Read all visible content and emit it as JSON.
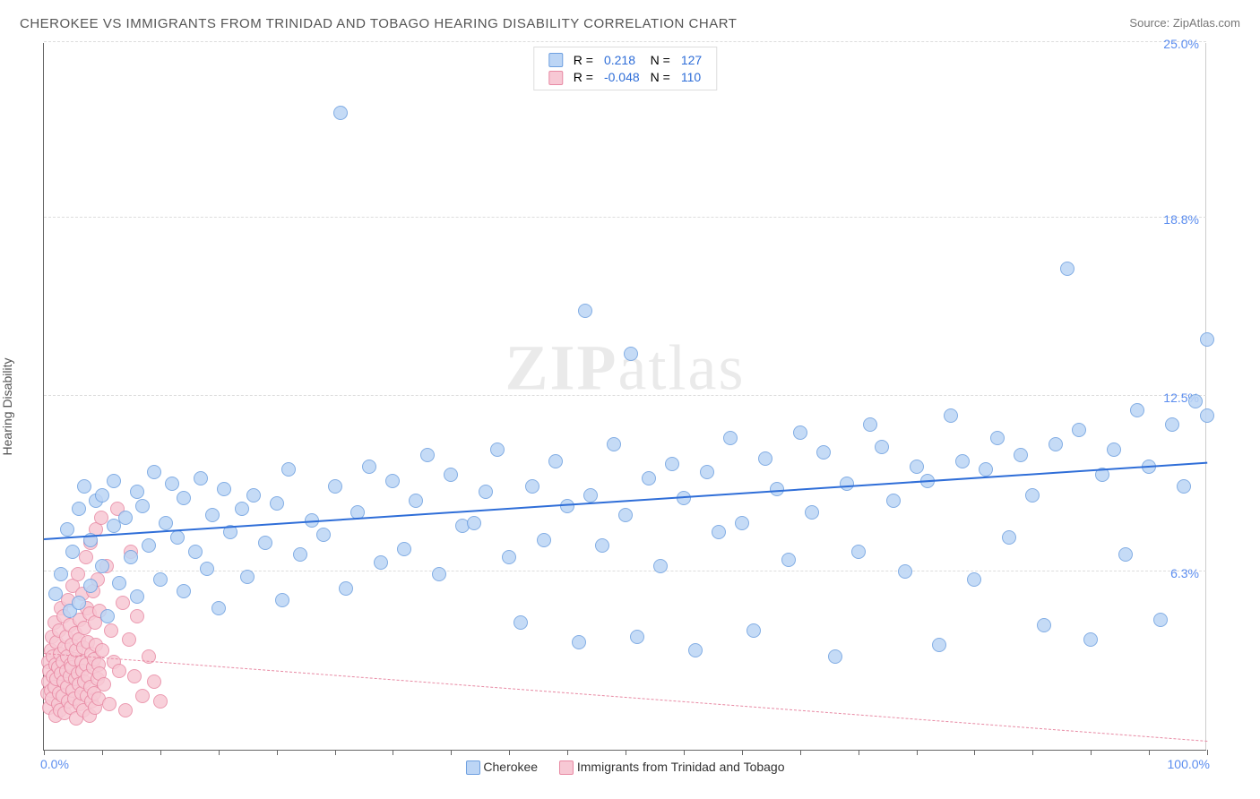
{
  "title": "CHEROKEE VS IMMIGRANTS FROM TRINIDAD AND TOBAGO HEARING DISABILITY CORRELATION CHART",
  "source_label": "Source:",
  "source_site": "ZipAtlas.com",
  "ylabel": "Hearing Disability",
  "watermark_a": "ZIP",
  "watermark_b": "atlas",
  "chart": {
    "type": "scatter",
    "xlim": [
      0,
      100
    ],
    "ylim": [
      0,
      25
    ],
    "x_ticks_minor_step": 5,
    "y_gridlines": [
      6.3,
      12.5,
      18.8,
      25.0
    ],
    "y_tick_labels": [
      "6.3%",
      "12.5%",
      "18.8%",
      "25.0%"
    ],
    "x_tick_labels": {
      "left": "0.0%",
      "right": "100.0%"
    },
    "background_color": "#ffffff",
    "grid_color": "#dddddd",
    "tick_label_color": "#5b8def",
    "marker_radius": 8,
    "marker_stroke_width": 1,
    "series": [
      {
        "name": "Cherokee",
        "fill_color": "#bcd5f5",
        "stroke_color": "#6ea0e0",
        "trend": {
          "y_at_x0": 7.4,
          "y_at_x100": 10.1,
          "color": "#2f6ed8",
          "width": 2,
          "dash": "solid"
        },
        "R": "0.218",
        "N": "127",
        "points": [
          [
            1,
            5.5
          ],
          [
            1.5,
            6.2
          ],
          [
            2,
            7.8
          ],
          [
            2.2,
            4.9
          ],
          [
            2.5,
            7.0
          ],
          [
            3,
            8.5
          ],
          [
            3,
            5.2
          ],
          [
            3.5,
            9.3
          ],
          [
            4,
            5.8
          ],
          [
            4,
            7.4
          ],
          [
            4.5,
            8.8
          ],
          [
            5,
            6.5
          ],
          [
            5,
            9.0
          ],
          [
            5.5,
            4.7
          ],
          [
            6,
            7.9
          ],
          [
            6,
            9.5
          ],
          [
            6.5,
            5.9
          ],
          [
            7,
            8.2
          ],
          [
            7.5,
            6.8
          ],
          [
            8,
            9.1
          ],
          [
            8,
            5.4
          ],
          [
            8.5,
            8.6
          ],
          [
            9,
            7.2
          ],
          [
            9.5,
            9.8
          ],
          [
            10,
            6.0
          ],
          [
            10.5,
            8.0
          ],
          [
            11,
            9.4
          ],
          [
            11.5,
            7.5
          ],
          [
            12,
            5.6
          ],
          [
            12,
            8.9
          ],
          [
            13,
            7.0
          ],
          [
            13.5,
            9.6
          ],
          [
            14,
            6.4
          ],
          [
            14.5,
            8.3
          ],
          [
            15,
            5.0
          ],
          [
            15.5,
            9.2
          ],
          [
            16,
            7.7
          ],
          [
            17,
            8.5
          ],
          [
            17.5,
            6.1
          ],
          [
            18,
            9.0
          ],
          [
            19,
            7.3
          ],
          [
            20,
            8.7
          ],
          [
            20.5,
            5.3
          ],
          [
            21,
            9.9
          ],
          [
            22,
            6.9
          ],
          [
            23,
            8.1
          ],
          [
            24,
            7.6
          ],
          [
            25,
            9.3
          ],
          [
            25.5,
            22.5
          ],
          [
            26,
            5.7
          ],
          [
            27,
            8.4
          ],
          [
            28,
            10.0
          ],
          [
            29,
            6.6
          ],
          [
            30,
            9.5
          ],
          [
            31,
            7.1
          ],
          [
            32,
            8.8
          ],
          [
            33,
            10.4
          ],
          [
            34,
            6.2
          ],
          [
            35,
            9.7
          ],
          [
            36,
            7.9
          ],
          [
            37,
            8.0
          ],
          [
            38,
            9.1
          ],
          [
            39,
            10.6
          ],
          [
            40,
            6.8
          ],
          [
            41,
            4.5
          ],
          [
            42,
            9.3
          ],
          [
            43,
            7.4
          ],
          [
            44,
            10.2
          ],
          [
            45,
            8.6
          ],
          [
            46,
            3.8
          ],
          [
            46.5,
            15.5
          ],
          [
            47,
            9.0
          ],
          [
            48,
            7.2
          ],
          [
            49,
            10.8
          ],
          [
            50,
            8.3
          ],
          [
            50.5,
            14.0
          ],
          [
            51,
            4.0
          ],
          [
            52,
            9.6
          ],
          [
            53,
            6.5
          ],
          [
            54,
            10.1
          ],
          [
            55,
            8.9
          ],
          [
            56,
            3.5
          ],
          [
            57,
            9.8
          ],
          [
            58,
            7.7
          ],
          [
            59,
            11.0
          ],
          [
            60,
            8.0
          ],
          [
            61,
            4.2
          ],
          [
            62,
            10.3
          ],
          [
            63,
            9.2
          ],
          [
            64,
            6.7
          ],
          [
            65,
            11.2
          ],
          [
            66,
            8.4
          ],
          [
            67,
            10.5
          ],
          [
            68,
            3.3
          ],
          [
            69,
            9.4
          ],
          [
            70,
            7.0
          ],
          [
            71,
            11.5
          ],
          [
            72,
            10.7
          ],
          [
            73,
            8.8
          ],
          [
            74,
            6.3
          ],
          [
            75,
            10.0
          ],
          [
            76,
            9.5
          ],
          [
            77,
            3.7
          ],
          [
            78,
            11.8
          ],
          [
            79,
            10.2
          ],
          [
            80,
            6.0
          ],
          [
            81,
            9.9
          ],
          [
            82,
            11.0
          ],
          [
            83,
            7.5
          ],
          [
            84,
            10.4
          ],
          [
            85,
            9.0
          ],
          [
            86,
            4.4
          ],
          [
            87,
            10.8
          ],
          [
            88,
            17.0
          ],
          [
            89,
            11.3
          ],
          [
            90,
            3.9
          ],
          [
            91,
            9.7
          ],
          [
            92,
            10.6
          ],
          [
            93,
            6.9
          ],
          [
            94,
            12.0
          ],
          [
            95,
            10.0
          ],
          [
            96,
            4.6
          ],
          [
            97,
            11.5
          ],
          [
            98,
            9.3
          ],
          [
            99,
            12.3
          ],
          [
            100,
            14.5
          ],
          [
            100,
            11.8
          ]
        ]
      },
      {
        "name": "Immigrants from Trinidad and Tobago",
        "fill_color": "#f7c8d4",
        "stroke_color": "#e88aa4",
        "trend": {
          "y_at_x0": 3.4,
          "y_at_x100": 0.3,
          "color": "#e88aa4",
          "width": 1,
          "dash": "dashed"
        },
        "R": "-0.048",
        "N": "110",
        "points": [
          [
            0.3,
            2.0
          ],
          [
            0.4,
            2.4
          ],
          [
            0.4,
            3.1
          ],
          [
            0.5,
            1.5
          ],
          [
            0.5,
            2.8
          ],
          [
            0.6,
            3.5
          ],
          [
            0.6,
            2.1
          ],
          [
            0.7,
            4.0
          ],
          [
            0.7,
            1.8
          ],
          [
            0.8,
            2.6
          ],
          [
            0.8,
            3.3
          ],
          [
            0.9,
            2.2
          ],
          [
            0.9,
            4.5
          ],
          [
            1.0,
            1.2
          ],
          [
            1.0,
            3.0
          ],
          [
            1.1,
            2.5
          ],
          [
            1.1,
            3.8
          ],
          [
            1.2,
            1.6
          ],
          [
            1.2,
            2.9
          ],
          [
            1.3,
            4.2
          ],
          [
            1.3,
            2.0
          ],
          [
            1.4,
            3.4
          ],
          [
            1.4,
            1.4
          ],
          [
            1.5,
            2.7
          ],
          [
            1.5,
            5.0
          ],
          [
            1.6,
            3.1
          ],
          [
            1.6,
            1.9
          ],
          [
            1.7,
            2.4
          ],
          [
            1.7,
            4.7
          ],
          [
            1.8,
            3.6
          ],
          [
            1.8,
            1.3
          ],
          [
            1.9,
            2.8
          ],
          [
            1.9,
            4.0
          ],
          [
            2.0,
            2.2
          ],
          [
            2.0,
            3.3
          ],
          [
            2.1,
            1.7
          ],
          [
            2.1,
            5.3
          ],
          [
            2.2,
            2.6
          ],
          [
            2.2,
            4.4
          ],
          [
            2.3,
            3.0
          ],
          [
            2.3,
            1.5
          ],
          [
            2.4,
            2.9
          ],
          [
            2.4,
            3.7
          ],
          [
            2.5,
            2.1
          ],
          [
            2.5,
            5.8
          ],
          [
            2.6,
            3.2
          ],
          [
            2.6,
            1.8
          ],
          [
            2.7,
            4.1
          ],
          [
            2.7,
            2.5
          ],
          [
            2.8,
            3.5
          ],
          [
            2.8,
            1.1
          ],
          [
            2.9,
            2.7
          ],
          [
            2.9,
            6.2
          ],
          [
            3.0,
            3.9
          ],
          [
            3.0,
            2.3
          ],
          [
            3.1,
            1.6
          ],
          [
            3.1,
            4.6
          ],
          [
            3.2,
            3.1
          ],
          [
            3.2,
            2.0
          ],
          [
            3.3,
            5.5
          ],
          [
            3.3,
            2.8
          ],
          [
            3.4,
            1.4
          ],
          [
            3.4,
            3.6
          ],
          [
            3.5,
            4.3
          ],
          [
            3.5,
            2.4
          ],
          [
            3.6,
            6.8
          ],
          [
            3.6,
            3.0
          ],
          [
            3.7,
            1.9
          ],
          [
            3.7,
            5.0
          ],
          [
            3.8,
            2.6
          ],
          [
            3.8,
            3.8
          ],
          [
            3.9,
            1.2
          ],
          [
            3.9,
            4.8
          ],
          [
            4.0,
            2.2
          ],
          [
            4.0,
            7.3
          ],
          [
            4.1,
            3.4
          ],
          [
            4.1,
            1.7
          ],
          [
            4.2,
            2.9
          ],
          [
            4.2,
            5.6
          ],
          [
            4.3,
            3.2
          ],
          [
            4.3,
            2.0
          ],
          [
            4.4,
            4.5
          ],
          [
            4.4,
            1.5
          ],
          [
            4.5,
            3.7
          ],
          [
            4.5,
            7.8
          ],
          [
            4.6,
            2.5
          ],
          [
            4.6,
            6.0
          ],
          [
            4.7,
            3.0
          ],
          [
            4.7,
            1.8
          ],
          [
            4.8,
            4.9
          ],
          [
            4.8,
            2.7
          ],
          [
            4.9,
            8.2
          ],
          [
            5.0,
            3.5
          ],
          [
            5.2,
            2.3
          ],
          [
            5.4,
            6.5
          ],
          [
            5.6,
            1.6
          ],
          [
            5.8,
            4.2
          ],
          [
            6.0,
            3.1
          ],
          [
            6.3,
            8.5
          ],
          [
            6.5,
            2.8
          ],
          [
            6.8,
            5.2
          ],
          [
            7.0,
            1.4
          ],
          [
            7.3,
            3.9
          ],
          [
            7.5,
            7.0
          ],
          [
            7.8,
            2.6
          ],
          [
            8.0,
            4.7
          ],
          [
            8.5,
            1.9
          ],
          [
            9.0,
            3.3
          ],
          [
            9.5,
            2.4
          ],
          [
            10.0,
            1.7
          ]
        ]
      }
    ]
  },
  "legend_bottom": {
    "a": "Cherokee",
    "b": "Immigrants from Trinidad and Tobago"
  }
}
